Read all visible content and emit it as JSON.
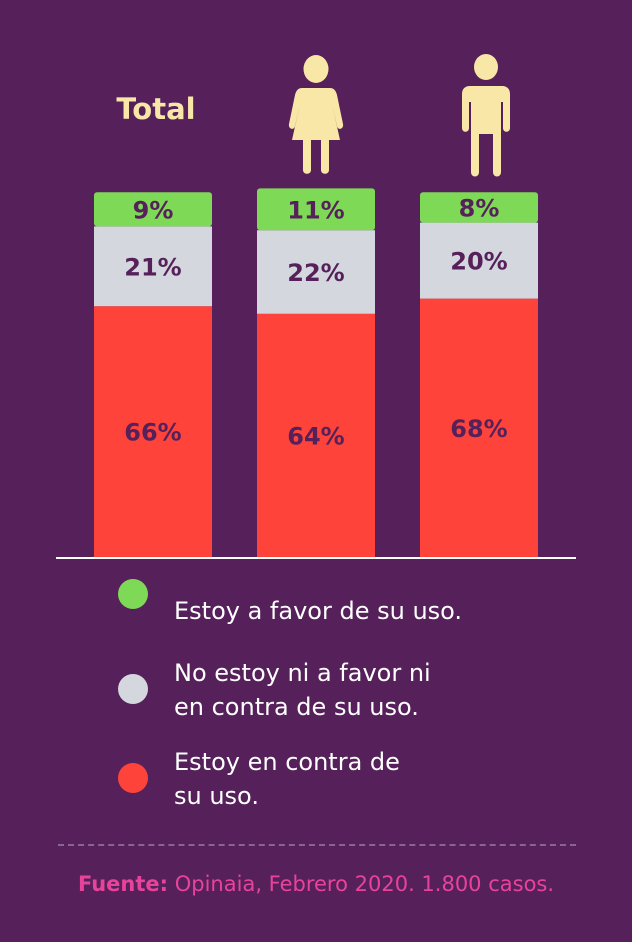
{
  "colors": {
    "background": "#56215a",
    "favor": "#7ed957",
    "neutral": "#d4d7de",
    "contra": "#fe443a",
    "label": "#56215a",
    "icon": "#f8e7a6",
    "source": "#e8439a"
  },
  "header": {
    "total_label": "Total",
    "icons": [
      "female-person-icon",
      "male-person-icon"
    ]
  },
  "chart_data": {
    "type": "bar",
    "stacked": true,
    "normalized_percent": true,
    "categories": [
      "Total",
      "Mujeres",
      "Hombres"
    ],
    "series": [
      {
        "name": "Estoy en contra de su uso.",
        "values": [
          66,
          64,
          68
        ],
        "labels": [
          "66%",
          "64%",
          "68%"
        ],
        "color": "#fe443a"
      },
      {
        "name": "No estoy ni a favor ni en contra de su uso.",
        "values": [
          21,
          22,
          20
        ],
        "labels": [
          "21%",
          "22%",
          "20%"
        ],
        "color": "#d4d7de"
      },
      {
        "name": "Estoy a favor de su uso.",
        "values": [
          9,
          11,
          8
        ],
        "labels": [
          "9%",
          "11%",
          "8%"
        ],
        "color": "#7ed957"
      }
    ],
    "ylim": [
      0,
      100
    ],
    "grid": false,
    "legend_placement": "bottom"
  },
  "legend": {
    "items": [
      {
        "text": "Estoy a favor de su uso.",
        "color": "#7ed957"
      },
      {
        "text": "No estoy ni a favor ni\nen contra de su uso.",
        "color": "#d4d7de"
      },
      {
        "text": "Estoy en contra de\nsu uso.",
        "color": "#fe443a"
      }
    ]
  },
  "source": {
    "prefix": "Fuente:",
    "text": " Opinaia, Febrero 2020. 1.800 casos."
  }
}
